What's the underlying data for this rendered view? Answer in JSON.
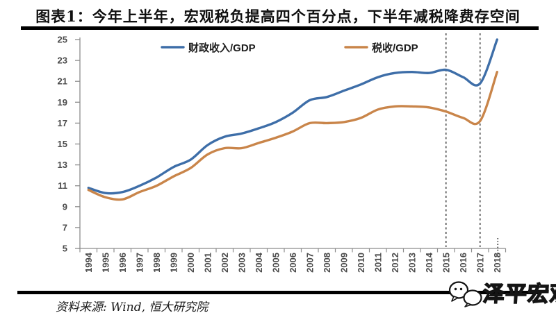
{
  "header": {
    "title": "图表1：今年上半年，宏观税负提高四个百分点，下半年减税降费存空间"
  },
  "chart_data": {
    "type": "line",
    "title": "图表1：今年上半年，宏观税负提高四个百分点，下半年减税降费存空间",
    "x": [
      "1994",
      "1995",
      "1996",
      "1997",
      "1998",
      "1999",
      "2000",
      "2001",
      "2002",
      "2003",
      "2004",
      "2005",
      "2006",
      "2007",
      "2008",
      "2009",
      "2010",
      "2011",
      "2012",
      "2013",
      "2014",
      "2015",
      "2016",
      "2017",
      "2018"
    ],
    "series": [
      {
        "name": "财政收入/GDP",
        "color": "#3E6EA8",
        "values": [
          10.8,
          10.3,
          10.4,
          11.0,
          11.8,
          12.8,
          13.5,
          14.9,
          15.7,
          16.0,
          16.5,
          17.1,
          18.0,
          19.2,
          19.5,
          20.1,
          20.7,
          21.4,
          21.8,
          21.9,
          21.8,
          22.1,
          21.4,
          20.8,
          25.0
        ]
      },
      {
        "name": "税收/GDP",
        "color": "#C9854A",
        "values": [
          10.6,
          9.9,
          9.7,
          10.4,
          11.0,
          11.9,
          12.7,
          14.0,
          14.6,
          14.6,
          15.1,
          15.6,
          16.2,
          17.0,
          17.0,
          17.1,
          17.5,
          18.3,
          18.6,
          18.6,
          18.5,
          18.1,
          17.5,
          17.2,
          21.9
        ]
      }
    ],
    "ylim": [
      5,
      25
    ],
    "ytick_step": 2,
    "yticks": [
      5,
      7,
      9,
      11,
      13,
      15,
      17,
      19,
      21,
      23,
      25
    ],
    "grid": false,
    "legend_position": "top-inside",
    "dashed_vlines_x": [
      "2015",
      "2017"
    ],
    "dotted_axis_marker_x": "2018",
    "axis_color": "#8C8C8C",
    "tick_label_color": "#4A4A4A",
    "dashed_line_color": "#3F3F3F"
  },
  "footer": {
    "source": "资料来源: Wind, 恒大研究院",
    "watermark": "泽平宏观"
  }
}
